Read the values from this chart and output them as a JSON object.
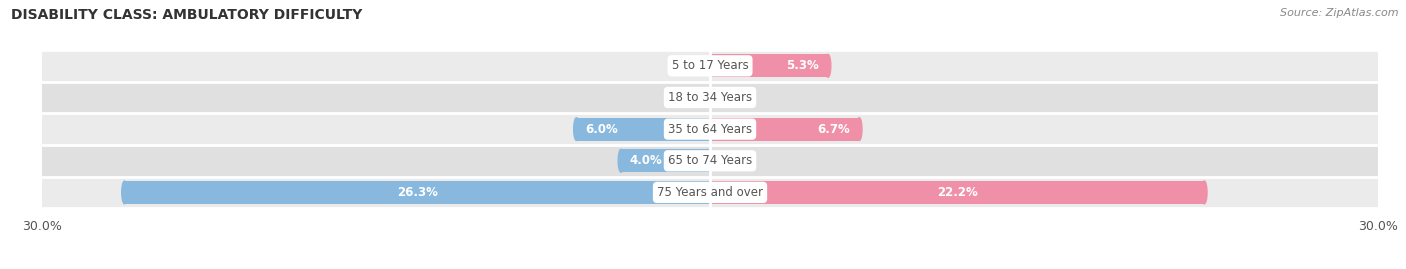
{
  "title": "DISABILITY CLASS: AMBULATORY DIFFICULTY",
  "source": "Source: ZipAtlas.com",
  "categories": [
    "5 to 17 Years",
    "18 to 34 Years",
    "35 to 64 Years",
    "65 to 74 Years",
    "75 Years and over"
  ],
  "male_values": [
    0.0,
    0.0,
    6.0,
    4.0,
    26.3
  ],
  "female_values": [
    5.3,
    0.0,
    6.7,
    0.0,
    22.2
  ],
  "xlim": 30.0,
  "male_color": "#88b8de",
  "female_color": "#f090a8",
  "row_bg_color_odd": "#ebebeb",
  "row_bg_color_even": "#e0e0e0",
  "label_color": "#555555",
  "title_color": "#333333",
  "source_color": "#888888",
  "bar_value_inside_color": "white",
  "bar_value_outside_color": "#555555",
  "center_label_bg": "white",
  "separator_color": "white"
}
